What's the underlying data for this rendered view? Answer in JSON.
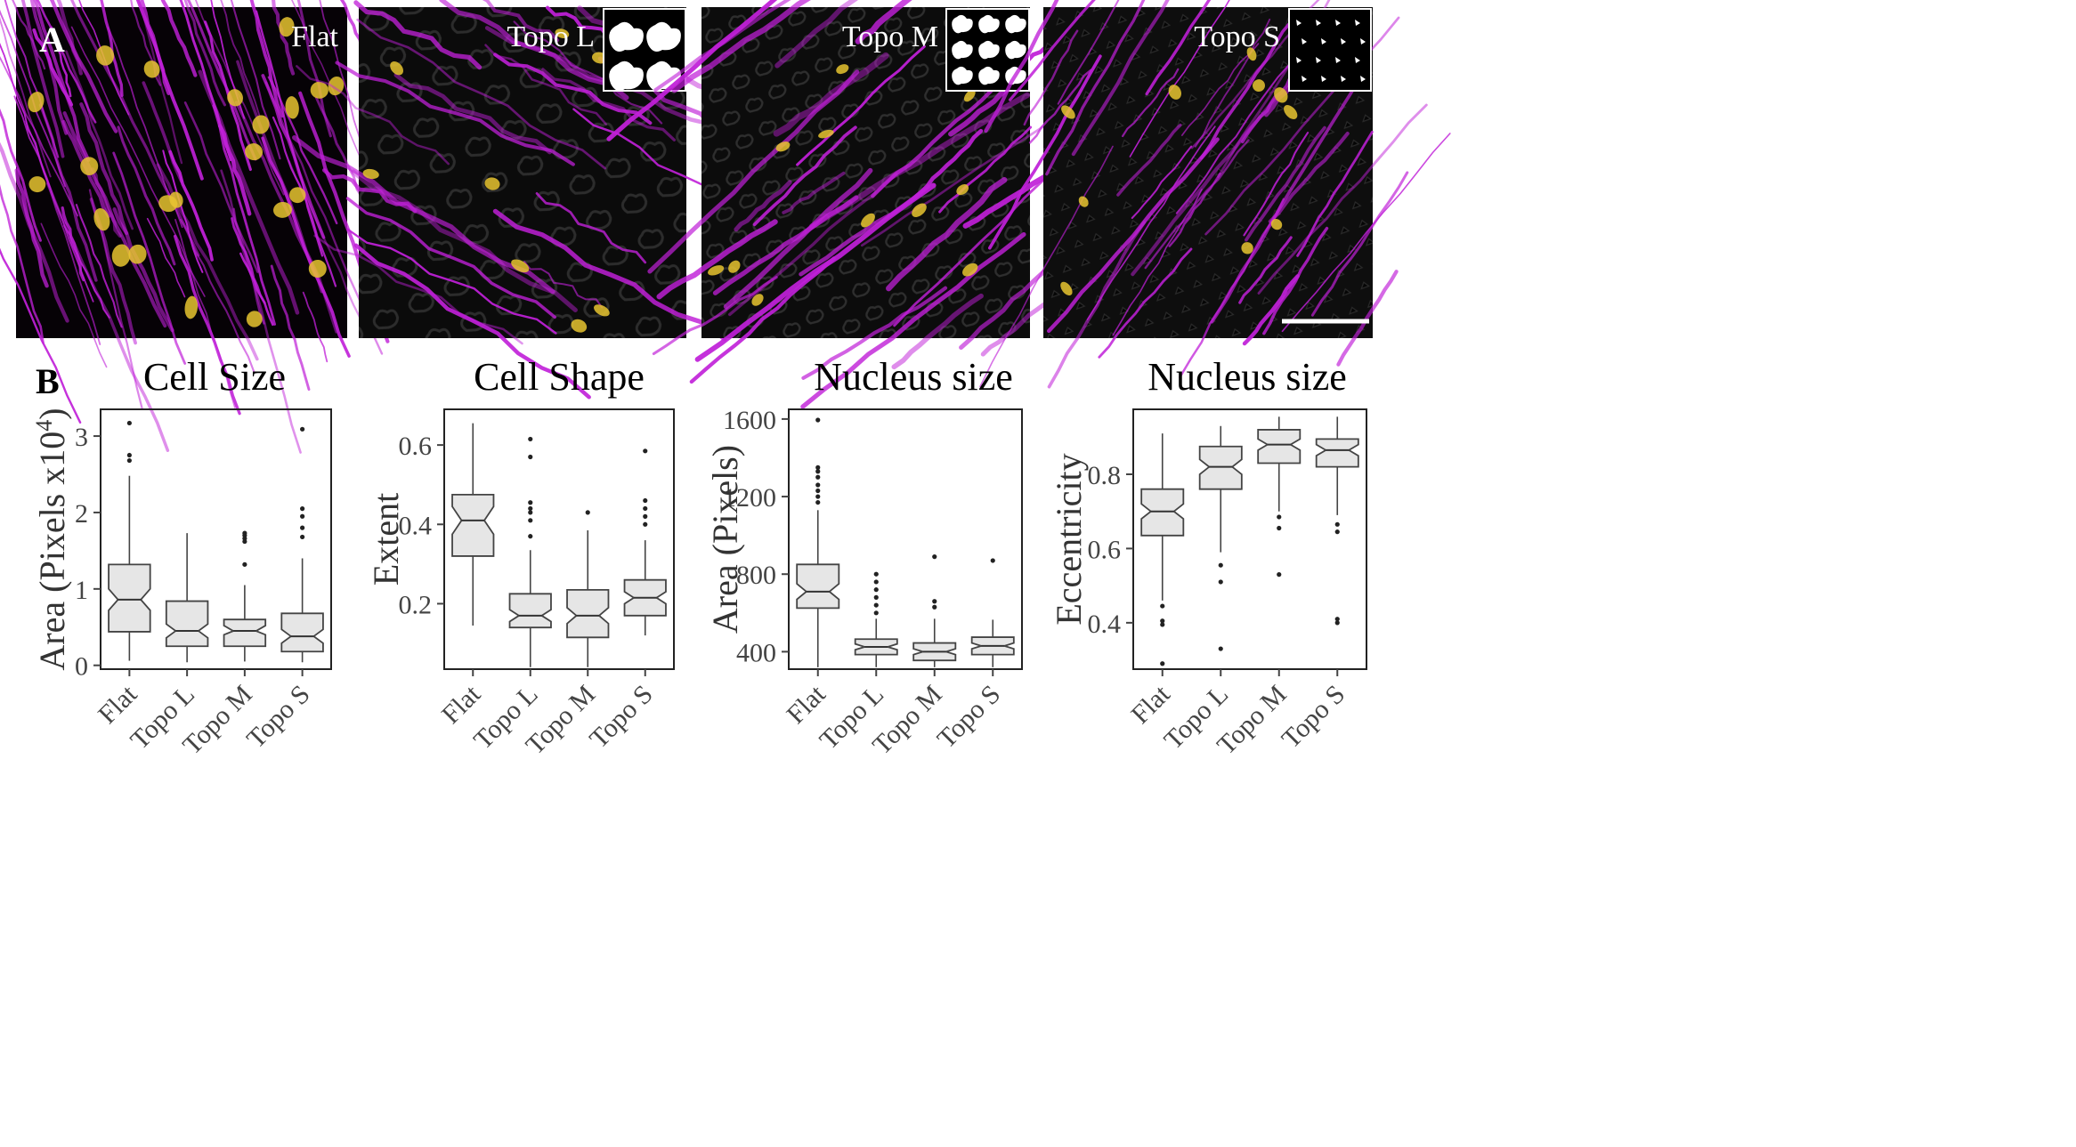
{
  "figure": {
    "panel_a_letter": "A",
    "panel_b_letter": "B",
    "micrographs": [
      {
        "label": "Flat",
        "inset_icon": null
      },
      {
        "label": "Topo L",
        "inset_icon": "large-heart-pattern-icon"
      },
      {
        "label": "Topo M",
        "inset_icon": "medium-heart-pattern-icon"
      },
      {
        "label": "Topo S",
        "inset_icon": "small-feature-pattern-icon"
      }
    ],
    "colors": {
      "cytoskeleton": "#c020d8",
      "nucleus": "#e8c430",
      "background": "#050505",
      "box_fill": "#e6e6e6",
      "box_stroke": "#444444"
    }
  },
  "chart_data": [
    {
      "type": "box",
      "title": "Cell Size",
      "ylabel": "Area (Pixels x10",
      "ylabel_sup": "4",
      "ylabel_tail": ")",
      "ylim": [
        -0.05,
        3.35
      ],
      "yticks": [
        0,
        1,
        2,
        3
      ],
      "yticklabels": [
        "0",
        "1",
        "2",
        "3"
      ],
      "categories": [
        "Flat",
        "Topo L",
        "Topo M",
        "Topo S"
      ],
      "boxes": [
        {
          "min": 0.06,
          "q1": 0.44,
          "median": 0.86,
          "q3": 1.32,
          "max": 2.48,
          "notch_lo": 0.72,
          "notch_hi": 1.0,
          "outliers": [
            2.68,
            2.75,
            3.17
          ]
        },
        {
          "min": 0.04,
          "q1": 0.25,
          "median": 0.45,
          "q3": 0.84,
          "max": 1.73,
          "notch_lo": 0.36,
          "notch_hi": 0.54,
          "outliers": []
        },
        {
          "min": 0.05,
          "q1": 0.25,
          "median": 0.45,
          "q3": 0.6,
          "max": 1.05,
          "notch_lo": 0.4,
          "notch_hi": 0.52,
          "outliers": [
            1.32,
            1.62,
            1.66,
            1.7,
            1.73
          ]
        },
        {
          "min": 0.04,
          "q1": 0.18,
          "median": 0.38,
          "q3": 0.68,
          "max": 1.4,
          "notch_lo": 0.29,
          "notch_hi": 0.47,
          "outliers": [
            1.68,
            1.8,
            1.95,
            2.05,
            3.09
          ]
        }
      ]
    },
    {
      "type": "box",
      "title": "Cell Shape",
      "ylabel": "Extent",
      "ylim": [
        0.035,
        0.69
      ],
      "yticks": [
        0.2,
        0.4,
        0.6
      ],
      "yticklabels": [
        "0.2",
        "0.4",
        "0.6"
      ],
      "categories": [
        "Flat",
        "Topo L",
        "Topo M",
        "Topo S"
      ],
      "boxes": [
        {
          "min": 0.145,
          "q1": 0.32,
          "median": 0.41,
          "q3": 0.475,
          "max": 0.655,
          "notch_lo": 0.375,
          "notch_hi": 0.445,
          "outliers": []
        },
        {
          "min": 0.04,
          "q1": 0.14,
          "median": 0.17,
          "q3": 0.225,
          "max": 0.335,
          "notch_lo": 0.155,
          "notch_hi": 0.185,
          "outliers": [
            0.37,
            0.41,
            0.43,
            0.44,
            0.455,
            0.57,
            0.615
          ]
        },
        {
          "min": 0.04,
          "q1": 0.115,
          "median": 0.17,
          "q3": 0.235,
          "max": 0.385,
          "notch_lo": 0.15,
          "notch_hi": 0.19,
          "outliers": [
            0.43
          ]
        },
        {
          "min": 0.12,
          "q1": 0.17,
          "median": 0.215,
          "q3": 0.26,
          "max": 0.36,
          "notch_lo": 0.2,
          "notch_hi": 0.23,
          "outliers": [
            0.4,
            0.42,
            0.44,
            0.46,
            0.585
          ]
        }
      ]
    },
    {
      "type": "box",
      "title": "Nucleus size",
      "ylabel": "Area (Pixels)",
      "ylim": [
        310,
        1650
      ],
      "yticks": [
        400,
        800,
        1200,
        1600
      ],
      "yticklabels": [
        "400",
        "800",
        "1200",
        "1600"
      ],
      "categories": [
        "Flat",
        "Topo L",
        "Topo M",
        "Topo S"
      ],
      "boxes": [
        {
          "min": 320,
          "q1": 625,
          "median": 710,
          "q3": 850,
          "max": 1130,
          "notch_lo": 670,
          "notch_hi": 750,
          "outliers": [
            1170,
            1200,
            1230,
            1260,
            1300,
            1330,
            1350,
            1595
          ]
        },
        {
          "min": 320,
          "q1": 385,
          "median": 425,
          "q3": 465,
          "max": 570,
          "notch_lo": 410,
          "notch_hi": 440,
          "outliers": [
            600,
            640,
            680,
            720,
            760,
            800
          ]
        },
        {
          "min": 320,
          "q1": 355,
          "median": 400,
          "q3": 445,
          "max": 570,
          "notch_lo": 385,
          "notch_hi": 415,
          "outliers": [
            630,
            660,
            890
          ]
        },
        {
          "min": 320,
          "q1": 385,
          "median": 430,
          "q3": 475,
          "max": 565,
          "notch_lo": 415,
          "notch_hi": 445,
          "outliers": [
            870
          ]
        }
      ]
    },
    {
      "type": "box",
      "title": "Nucleus size",
      "ylabel": "Eccentricity",
      "ylim": [
        0.275,
        0.975
      ],
      "yticks": [
        0.4,
        0.6,
        0.8
      ],
      "yticklabels": [
        "0.4",
        "0.6",
        "0.8"
      ],
      "categories": [
        "Flat",
        "Topo L",
        "Topo M",
        "Topo S"
      ],
      "boxes": [
        {
          "min": 0.46,
          "q1": 0.635,
          "median": 0.7,
          "q3": 0.76,
          "max": 0.91,
          "notch_lo": 0.68,
          "notch_hi": 0.72,
          "outliers": [
            0.29,
            0.395,
            0.405,
            0.445
          ]
        },
        {
          "min": 0.59,
          "q1": 0.76,
          "median": 0.82,
          "q3": 0.875,
          "max": 0.93,
          "notch_lo": 0.8,
          "notch_hi": 0.84,
          "outliers": [
            0.33,
            0.51,
            0.555
          ]
        },
        {
          "min": 0.7,
          "q1": 0.83,
          "median": 0.88,
          "q3": 0.92,
          "max": 0.955,
          "notch_lo": 0.865,
          "notch_hi": 0.895,
          "outliers": [
            0.53,
            0.655,
            0.685
          ]
        },
        {
          "min": 0.69,
          "q1": 0.82,
          "median": 0.865,
          "q3": 0.895,
          "max": 0.955,
          "notch_lo": 0.85,
          "notch_hi": 0.88,
          "outliers": [
            0.4,
            0.41,
            0.645,
            0.665
          ]
        }
      ]
    }
  ]
}
